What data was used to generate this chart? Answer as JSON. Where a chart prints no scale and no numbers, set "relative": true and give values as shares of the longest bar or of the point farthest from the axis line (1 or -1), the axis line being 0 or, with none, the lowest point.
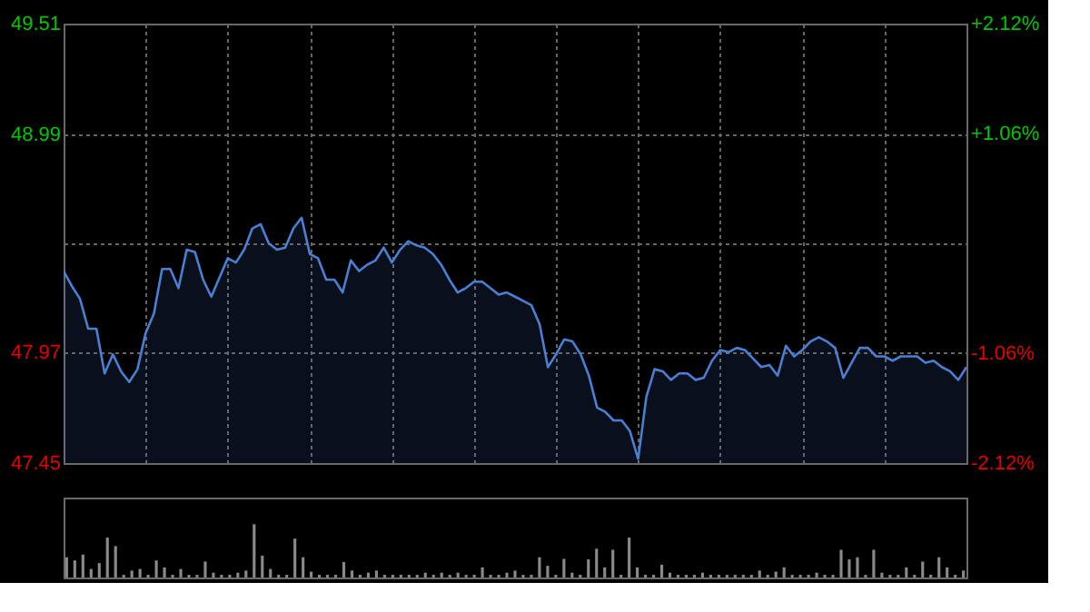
{
  "chart_data": [
    {
      "type": "area",
      "categories": [
        null,
        null,
        null,
        null,
        null,
        null,
        null,
        null,
        null,
        null,
        null,
        null,
        null,
        null,
        null,
        null,
        null,
        null,
        null,
        null,
        null,
        null,
        null,
        null,
        null,
        null,
        null,
        null,
        null,
        null,
        null,
        null,
        null,
        null,
        null,
        null,
        null,
        null,
        null,
        null,
        null,
        null,
        null,
        null,
        null,
        null,
        null,
        null,
        null,
        null,
        null,
        null,
        null,
        null,
        null,
        null,
        null,
        null,
        null,
        null,
        null,
        null,
        null,
        null,
        null,
        null,
        null,
        null,
        null,
        null,
        null,
        null,
        null,
        null,
        null,
        null,
        null,
        null,
        null,
        null,
        null,
        null,
        null,
        null,
        null,
        null,
        null,
        null,
        null,
        null,
        null,
        null,
        null,
        null,
        null,
        null,
        null,
        null,
        null,
        null,
        null,
        null,
        null,
        null,
        null,
        null,
        null,
        null,
        null,
        null,
        null
      ],
      "series": [
        {
          "color": "#4a7fd4",
          "values": [
            48.35,
            48.28,
            48.22,
            48.08,
            48.08,
            47.87,
            47.96,
            47.88,
            47.83,
            47.89,
            48.06,
            48.15,
            48.36,
            48.36,
            48.27,
            48.45,
            48.44,
            48.31,
            48.23,
            48.32,
            48.41,
            48.39,
            48.45,
            48.55,
            48.57,
            48.48,
            48.45,
            48.46,
            48.55,
            48.6,
            48.43,
            48.41,
            48.31,
            48.31,
            48.25,
            48.4,
            48.35,
            48.38,
            48.4,
            48.46,
            48.39,
            48.45,
            48.49,
            48.47,
            48.46,
            48.43,
            48.38,
            48.31,
            48.25,
            48.27,
            48.3,
            48.3,
            48.27,
            48.24,
            48.25,
            48.23,
            48.21,
            48.19,
            48.1,
            47.9,
            47.96,
            48.03,
            48.02,
            47.96,
            47.86,
            47.71,
            47.69,
            47.65,
            47.65,
            47.6,
            47.47,
            47.76,
            47.89,
            47.88,
            47.84,
            47.87,
            47.87,
            47.84,
            47.85,
            47.93,
            47.98,
            47.97,
            47.99,
            47.98,
            47.94,
            47.9,
            47.91,
            47.86,
            48.0,
            47.95,
            47.98,
            48.02,
            48.04,
            48.02,
            47.99,
            47.85,
            47.92,
            47.99,
            47.99,
            47.95,
            47.95,
            47.93,
            47.95,
            47.95,
            47.95,
            47.92,
            47.93,
            47.9,
            47.88,
            47.84,
            47.9
          ]
        }
      ],
      "ylim": [
        47.45,
        49.51
      ],
      "yticks": [
        47.45,
        47.97,
        {
          "value": 48.48,
          "label": null
        },
        48.99,
        49.51
      ],
      "y2lim": [
        -2.12,
        2.12
      ],
      "y2ticks": [
        {
          "value": -2.12,
          "label": "-2.12%"
        },
        {
          "value": -1.06,
          "label": "-1.06%"
        },
        {
          "value": 0,
          "label": null
        },
        {
          "value": 1.06,
          "label": "+1.06%"
        },
        {
          "value": 2.12,
          "label": "+2.12%"
        }
      ],
      "tick_labels": "y",
      "grid": true
    },
    {
      "type": "bar",
      "relative": true,
      "color": "#8a8a8a",
      "categories": [
        null,
        null,
        null,
        null,
        null,
        null,
        null,
        null,
        null,
        null,
        null,
        null,
        null,
        null,
        null,
        null,
        null,
        null,
        null,
        null,
        null,
        null,
        null,
        null,
        null,
        null,
        null,
        null,
        null,
        null,
        null,
        null,
        null,
        null,
        null,
        null,
        null,
        null,
        null,
        null,
        null,
        null,
        null,
        null,
        null,
        null,
        null,
        null,
        null,
        null,
        null,
        null,
        null,
        null,
        null,
        null,
        null,
        null,
        null,
        null,
        null,
        null,
        null,
        null,
        null,
        null,
        null,
        null,
        null,
        null,
        null,
        null,
        null,
        null,
        null,
        null,
        null,
        null,
        null,
        null,
        null,
        null,
        null,
        null,
        null,
        null,
        null,
        null,
        null,
        null,
        null,
        null,
        null,
        null,
        null,
        null,
        null,
        null,
        null,
        null,
        null,
        null,
        null,
        null,
        null,
        null,
        null,
        null,
        null,
        null,
        null
      ],
      "values": [
        0.38,
        0.32,
        0.43,
        0.16,
        0.27,
        0.75,
        0.59,
        0.05,
        0.13,
        0.16,
        0.05,
        0.32,
        0.19,
        0.05,
        0.16,
        0.05,
        0.05,
        0.3,
        0.09,
        0.05,
        0.05,
        0.09,
        0.13,
        1,
        0.41,
        0.16,
        0.05,
        0.05,
        0.73,
        0.38,
        0.11,
        0.05,
        0.05,
        0.05,
        0.29,
        0.13,
        0.05,
        0.09,
        0.13,
        0.05,
        0.05,
        0.05,
        0.05,
        0.05,
        0.09,
        0.05,
        0.09,
        0.05,
        0.09,
        0.05,
        0.05,
        0.19,
        0.05,
        0.05,
        0.09,
        0.13,
        0.05,
        0.05,
        0.38,
        0.22,
        0.05,
        0.35,
        0.09,
        0.05,
        0.34,
        0.54,
        0.19,
        0.52,
        0.05,
        0.75,
        0.19,
        0.05,
        0.05,
        0.24,
        0.09,
        0.05,
        0.05,
        0.05,
        0.09,
        0.05,
        0.05,
        0.05,
        0.05,
        0.05,
        0.05,
        0.13,
        0.05,
        0.11,
        0.19,
        0.05,
        0.05,
        0.05,
        0.09,
        0.05,
        0.05,
        0.52,
        0.34,
        0.38,
        0.05,
        0.52,
        0.09,
        0.05,
        0.05,
        0.19,
        0.05,
        0.3,
        0.05,
        0.38,
        0.19,
        0.05,
        0.13
      ],
      "tick_labels": false
    }
  ]
}
